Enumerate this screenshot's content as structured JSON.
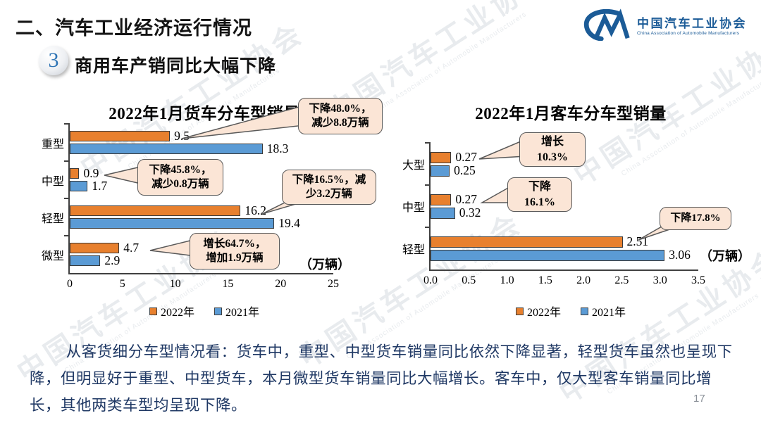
{
  "slide": {
    "section_title": "二、汽车工业经济运行情况",
    "badge_number": "3",
    "subtitle": "商用车产销同比大幅下降",
    "page_number": "17"
  },
  "logo": {
    "name_cn": "中国汽车工业协会",
    "name_en": "China Association of Automobile Manufacturers"
  },
  "watermark": {
    "text_cn": "中国汽车工业协会",
    "text_en": "China Association of Automobile Manufacturers"
  },
  "body_text": "从客货细分车型情况看：货车中，重型、中型货车销量同比依然下降显著，轻型货车虽然也呈现下降，但明显好于重型、中型货车，本月微型货车销量同比大幅增长。客车中，仅大型客车销量同比增长，其他两类车型均呈现下降。",
  "colors": {
    "orange_2022": "#E8802E",
    "blue_2021": "#5B9BD5",
    "callout_bg": "#FBE5D6",
    "callout_border": "#595959",
    "body_text_color": "#1F3864",
    "logo_blue": "#1B5B97"
  },
  "chart_data": [
    {
      "type": "bar",
      "orientation": "horizontal",
      "title": "2022年1月货车分车型销量",
      "categories": [
        "重型",
        "中型",
        "轻型",
        "微型"
      ],
      "series": [
        {
          "name": "2022年",
          "color": "#E8802E",
          "values": [
            9.5,
            0.9,
            16.2,
            4.7
          ]
        },
        {
          "name": "2021年",
          "color": "#5B9BD5",
          "values": [
            18.3,
            1.7,
            19.4,
            2.9
          ]
        }
      ],
      "xlim": [
        0,
        25
      ],
      "xticks": [
        "0",
        "5",
        "10",
        "15",
        "20",
        "25"
      ],
      "unit_label": "（万辆）",
      "legend_position": "bottom",
      "grid": false,
      "annotations": [
        {
          "lines": [
            "下降48.0%，",
            "减少8.8万辆"
          ],
          "points_to": "重型 2022年 9.5"
        },
        {
          "lines": [
            "下降45.8%，",
            "减少0.8万辆"
          ],
          "points_to": "中型 2022年 0.9"
        },
        {
          "lines": [
            "下降16.5%，减",
            "少3.2万辆"
          ],
          "points_to": "轻型 2022年 16.2"
        },
        {
          "lines": [
            "增长64.7%，",
            "增加1.9万辆"
          ],
          "points_to": "微型 2022年 4.7"
        }
      ]
    },
    {
      "type": "bar",
      "orientation": "horizontal",
      "title": "2022年1月客车分车型销量",
      "categories": [
        "大型",
        "中型",
        "轻型"
      ],
      "series": [
        {
          "name": "2022年",
          "color": "#E8802E",
          "values": [
            0.27,
            0.27,
            2.51
          ]
        },
        {
          "name": "2021年",
          "color": "#5B9BD5",
          "values": [
            0.25,
            0.32,
            3.06
          ]
        }
      ],
      "xlim": [
        0,
        3.5
      ],
      "xticks": [
        "0.0",
        "0.5",
        "1.0",
        "1.5",
        "2.0",
        "2.5",
        "3.0",
        "3.5"
      ],
      "unit_label": "（万辆）",
      "legend_position": "bottom",
      "grid": false,
      "annotations": [
        {
          "lines": [
            "增长",
            "10.3%"
          ],
          "points_to": "大型 2022年 0.27"
        },
        {
          "lines": [
            "下降",
            "16.1%"
          ],
          "points_to": "中型 2022年 0.27"
        },
        {
          "lines": [
            "下降17.8%"
          ],
          "points_to": "轻型 2022年 2.51"
        }
      ]
    }
  ]
}
